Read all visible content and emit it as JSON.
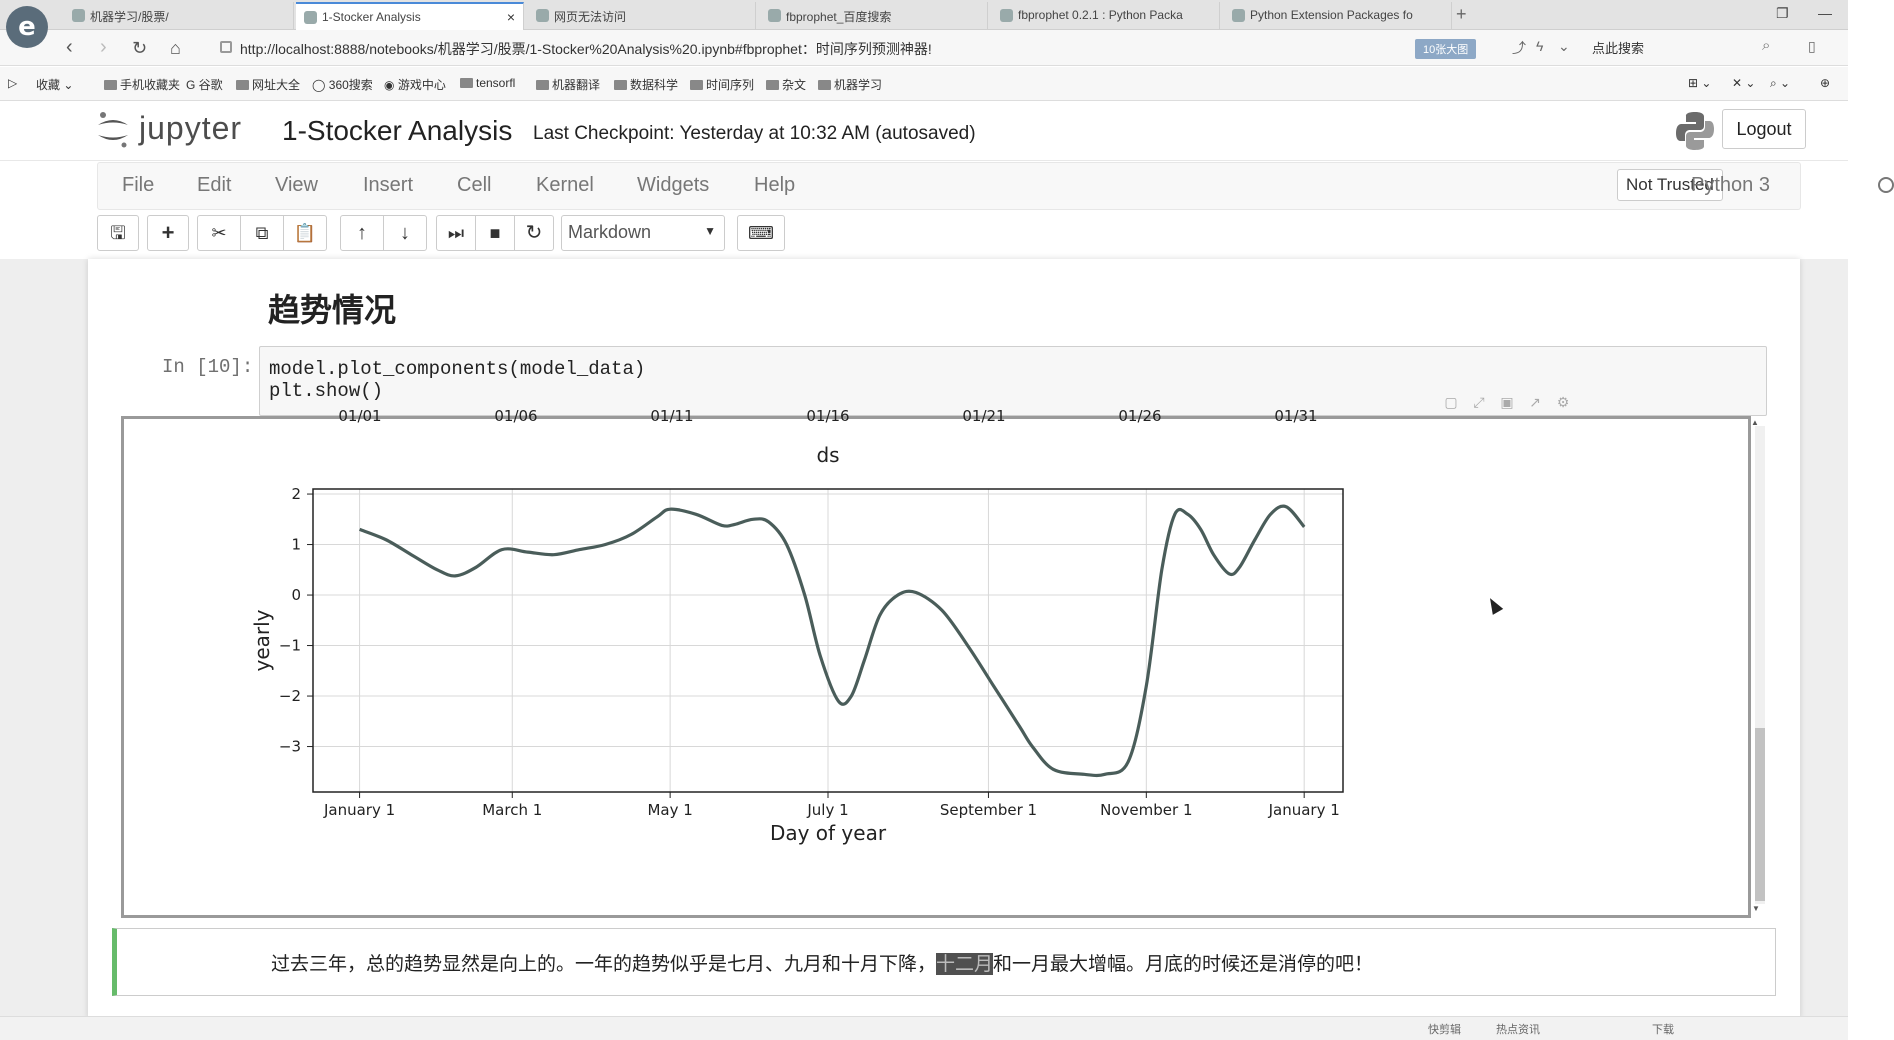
{
  "browser": {
    "logo": "e",
    "tabs": [
      {
        "title": "机器学习/股票/",
        "active": false
      },
      {
        "title": "1-Stocker Analysis",
        "active": true
      },
      {
        "title": "网页无法访问",
        "active": false
      },
      {
        "title": "fbprophet_百度搜索",
        "active": false
      },
      {
        "title": "fbprophet 0.2.1 : Python Packa",
        "active": false
      },
      {
        "title": "Python Extension Packages fo",
        "active": false
      }
    ],
    "tab_close": "×",
    "new_tab": "+",
    "url": "http://localhost:8888/notebooks/机器学习/股票/1-Stocker%20Analysis%20.ipynb#fbprophet：时间序列预测神器!",
    "zoom_badge": "10张大图",
    "search_placeholder": "点此搜索",
    "bookmarks": [
      "收藏",
      "手机收藏夹",
      "谷歌",
      "网址大全",
      "360搜索",
      "游戏中心",
      "tensorfl",
      "机器翻译",
      "数据科学",
      "时间序列",
      "杂文",
      "机器学习"
    ]
  },
  "jupyter": {
    "logo_text": "jupyter",
    "notebook_name": "1-Stocker Analysis",
    "checkpoint": "Last Checkpoint: Yesterday at 10:32 AM (autosaved)",
    "logout": "Logout",
    "menu": [
      "File",
      "Edit",
      "View",
      "Insert",
      "Cell",
      "Kernel",
      "Widgets",
      "Help"
    ],
    "not_trusted": "Not Trusted",
    "kernel": "Python 3",
    "cell_type": "Markdown",
    "toolbar_icons": [
      "save-icon",
      "plus-icon",
      "scissors-icon",
      "copy-icon",
      "paste-icon",
      "arrow-up-icon",
      "arrow-down-icon",
      "step-icon",
      "stop-icon",
      "restart-icon",
      "keyboard-icon"
    ]
  },
  "notebook": {
    "heading": "趋势情况",
    "prompt": "In [10]:",
    "code_lines": [
      "model.plot_components(model_data)",
      "plt.show()"
    ],
    "markdown_text_before": "过去三年，总的趋势显然是向上的。一年的趋势似乎是七月、九月和十月下降，",
    "markdown_highlight": "十二月",
    "markdown_text_after": "和一月最大增幅。月底的时候还是消停的吧！"
  },
  "chart_data": {
    "type": "line",
    "partial_top_axis": {
      "ticks": [
        "01/01",
        "01/06",
        "01/11",
        "01/16",
        "01/21",
        "01/26",
        "01/31"
      ],
      "xlabel": "ds"
    },
    "xlabel": "Day of year",
    "ylabel": "yearly",
    "x_ticks": [
      "January 1",
      "March 1",
      "May 1",
      "July 1",
      "September 1",
      "November 1",
      "January 1"
    ],
    "x_tick_days": [
      0,
      59,
      120,
      181,
      243,
      304,
      365
    ],
    "xlim": [
      -18,
      380
    ],
    "ylim": [
      -3.9,
      2.1
    ],
    "y_ticks": [
      2,
      1,
      0,
      -1,
      -2,
      -3
    ],
    "grid": true,
    "line_color": "#4a5d5a",
    "series": [
      {
        "x": [
          0,
          10,
          20,
          30,
          37,
          45,
          55,
          65,
          75,
          85,
          95,
          105,
          115,
          120,
          130,
          140,
          145,
          152,
          158,
          165,
          172,
          178,
          185,
          190,
          195,
          201,
          208,
          215,
          225,
          235,
          245,
          255,
          260,
          268,
          280,
          288,
          297,
          304,
          310,
          315,
          320,
          325,
          330,
          336,
          340,
          346,
          352,
          358,
          365
        ],
        "y": [
          1.3,
          1.1,
          0.8,
          0.5,
          0.38,
          0.55,
          0.9,
          0.85,
          0.8,
          0.9,
          1.0,
          1.2,
          1.55,
          1.7,
          1.6,
          1.38,
          1.4,
          1.5,
          1.45,
          1.0,
          0.0,
          -1.2,
          -2.1,
          -2.0,
          -1.3,
          -0.4,
          0.0,
          0.05,
          -0.3,
          -1.0,
          -1.8,
          -2.6,
          -3.0,
          -3.45,
          -3.55,
          -3.55,
          -3.3,
          -1.8,
          0.5,
          1.6,
          1.6,
          1.3,
          0.8,
          0.42,
          0.55,
          1.1,
          1.6,
          1.75,
          1.35
        ]
      }
    ]
  },
  "statusbar": [
    "快剪辑",
    "热点资讯",
    "下载"
  ]
}
